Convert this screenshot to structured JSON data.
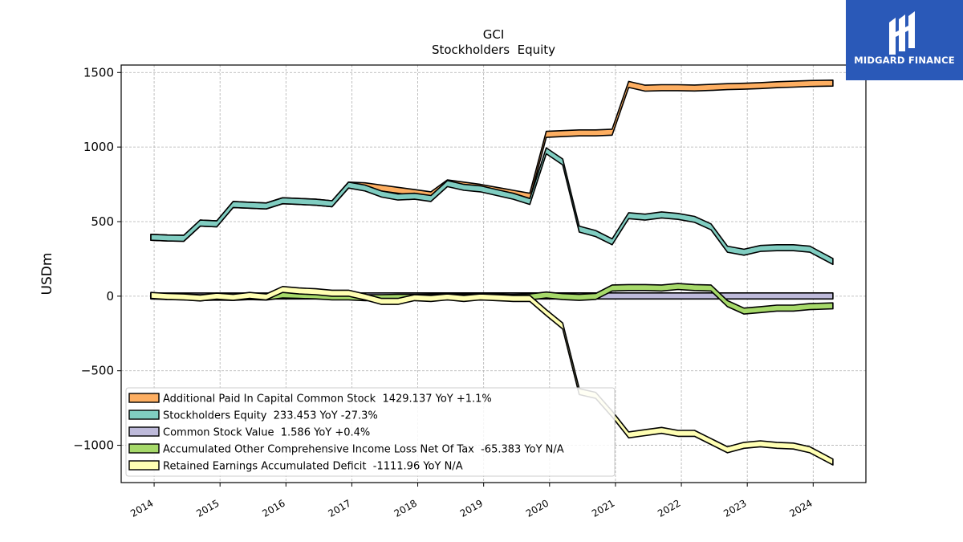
{
  "brand": {
    "name": "MIDGARD FINANCE",
    "bg_color": "#2a59b8"
  },
  "chart_data": {
    "type": "area",
    "title": "GCI",
    "subtitle": "Stockholders  Equity",
    "ylabel": "USDm",
    "xlabel": "",
    "ylim": [
      -1250,
      1550
    ],
    "xlim": [
      2013.5,
      2024.8
    ],
    "yticks": [
      -1000,
      -500,
      0,
      500,
      1000,
      1500
    ],
    "yticklabels": [
      "−1000",
      "−500",
      "0",
      "500",
      "1000",
      "1500"
    ],
    "xticks": [
      2014,
      2015,
      2016,
      2017,
      2018,
      2019,
      2020,
      2021,
      2022,
      2023,
      2024
    ],
    "xticklabels": [
      "2014",
      "2015",
      "2016",
      "2017",
      "2018",
      "2019",
      "2020",
      "2021",
      "2022",
      "2023",
      "2024"
    ],
    "grid": true,
    "legend_position": "lower-left",
    "series": [
      {
        "name": "Additional Paid In Capital Common Stock",
        "legend_label": "Additional Paid In Capital Common Stock  1429.137 YoY +1.1%",
        "color": "#fdae61",
        "points": [
          [
            2013.95,
            395
          ],
          [
            2014.2,
            390
          ],
          [
            2014.45,
            388
          ],
          [
            2014.7,
            490
          ],
          [
            2014.95,
            485
          ],
          [
            2015.2,
            615
          ],
          [
            2015.45,
            610
          ],
          [
            2015.7,
            605
          ],
          [
            2015.95,
            640
          ],
          [
            2016.2,
            635
          ],
          [
            2016.45,
            630
          ],
          [
            2016.7,
            620
          ],
          [
            2016.95,
            745
          ],
          [
            2017.2,
            740
          ],
          [
            2017.45,
            725
          ],
          [
            2017.7,
            710
          ],
          [
            2017.95,
            695
          ],
          [
            2018.2,
            680
          ],
          [
            2018.45,
            760
          ],
          [
            2018.7,
            745
          ],
          [
            2018.95,
            730
          ],
          [
            2019.2,
            710
          ],
          [
            2019.45,
            690
          ],
          [
            2019.7,
            670
          ],
          [
            2019.95,
            1085
          ],
          [
            2020.2,
            1090
          ],
          [
            2020.45,
            1095
          ],
          [
            2020.7,
            1095
          ],
          [
            2020.95,
            1100
          ],
          [
            2021.2,
            1420
          ],
          [
            2021.45,
            1395
          ],
          [
            2021.7,
            1398
          ],
          [
            2021.95,
            1398
          ],
          [
            2022.2,
            1396
          ],
          [
            2022.45,
            1400
          ],
          [
            2022.7,
            1405
          ],
          [
            2022.95,
            1408
          ],
          [
            2023.2,
            1412
          ],
          [
            2023.45,
            1418
          ],
          [
            2023.7,
            1422
          ],
          [
            2023.95,
            1426
          ],
          [
            2024.3,
            1429
          ]
        ]
      },
      {
        "name": "Stockholders Equity",
        "legend_label": "Stockholders Equity  233.453 YoY -27.3%",
        "color": "#80cdc1",
        "points": [
          [
            2013.95,
            395
          ],
          [
            2014.2,
            390
          ],
          [
            2014.45,
            388
          ],
          [
            2014.7,
            490
          ],
          [
            2014.95,
            485
          ],
          [
            2015.2,
            615
          ],
          [
            2015.45,
            610
          ],
          [
            2015.7,
            605
          ],
          [
            2015.95,
            640
          ],
          [
            2016.2,
            635
          ],
          [
            2016.45,
            630
          ],
          [
            2016.7,
            620
          ],
          [
            2016.95,
            745
          ],
          [
            2017.2,
            725
          ],
          [
            2017.45,
            685
          ],
          [
            2017.7,
            665
          ],
          [
            2017.95,
            670
          ],
          [
            2018.2,
            655
          ],
          [
            2018.45,
            755
          ],
          [
            2018.7,
            730
          ],
          [
            2018.95,
            720
          ],
          [
            2019.2,
            695
          ],
          [
            2019.45,
            670
          ],
          [
            2019.7,
            635
          ],
          [
            2019.95,
            975
          ],
          [
            2020.2,
            900
          ],
          [
            2020.45,
            450
          ],
          [
            2020.7,
            420
          ],
          [
            2020.95,
            365
          ],
          [
            2021.2,
            540
          ],
          [
            2021.45,
            530
          ],
          [
            2021.7,
            545
          ],
          [
            2021.95,
            535
          ],
          [
            2022.2,
            515
          ],
          [
            2022.45,
            465
          ],
          [
            2022.7,
            315
          ],
          [
            2022.95,
            295
          ],
          [
            2023.2,
            320
          ],
          [
            2023.45,
            325
          ],
          [
            2023.7,
            325
          ],
          [
            2023.95,
            315
          ],
          [
            2024.3,
            233
          ]
        ]
      },
      {
        "name": "Common Stock Value",
        "legend_label": "Common Stock Value  1.586 YoY +0.4%",
        "color": "#bebada",
        "points": [
          [
            2013.95,
            1.5
          ],
          [
            2024.3,
            1.586
          ]
        ]
      },
      {
        "name": "Accumulated Other Comprehensive Income Loss Net Of Tax",
        "legend_label": "Accumulated Other Comprehensive Income Loss Net Of Tax  -65.383 YoY N/A",
        "color": "#a6d96a",
        "points": [
          [
            2013.95,
            2
          ],
          [
            2014.2,
            -3
          ],
          [
            2014.45,
            -5
          ],
          [
            2014.7,
            -10
          ],
          [
            2014.95,
            -6
          ],
          [
            2015.2,
            -8
          ],
          [
            2015.45,
            -3
          ],
          [
            2015.7,
            -6
          ],
          [
            2015.95,
            8
          ],
          [
            2016.2,
            5
          ],
          [
            2016.45,
            2
          ],
          [
            2016.7,
            -5
          ],
          [
            2016.95,
            -5
          ],
          [
            2017.2,
            -10
          ],
          [
            2017.45,
            -10
          ],
          [
            2017.7,
            -8
          ],
          [
            2017.95,
            -8
          ],
          [
            2018.2,
            -6
          ],
          [
            2018.45,
            -4
          ],
          [
            2018.7,
            -6
          ],
          [
            2018.95,
            -6
          ],
          [
            2019.2,
            -5
          ],
          [
            2019.45,
            -8
          ],
          [
            2019.7,
            -5
          ],
          [
            2019.95,
            8
          ],
          [
            2020.2,
            -3
          ],
          [
            2020.45,
            -8
          ],
          [
            2020.7,
            -2
          ],
          [
            2020.95,
            55
          ],
          [
            2021.2,
            58
          ],
          [
            2021.45,
            58
          ],
          [
            2021.7,
            55
          ],
          [
            2021.95,
            65
          ],
          [
            2022.2,
            58
          ],
          [
            2022.45,
            55
          ],
          [
            2022.7,
            -50
          ],
          [
            2022.95,
            -100
          ],
          [
            2023.2,
            -90
          ],
          [
            2023.45,
            -80
          ],
          [
            2023.7,
            -80
          ],
          [
            2023.95,
            -70
          ],
          [
            2024.3,
            -65
          ]
        ]
      },
      {
        "name": "Retained Earnings Accumulated Deficit",
        "legend_label": "Retained Earnings Accumulated Deficit  -1111.96 YoY N/A",
        "color": "#ffffb3",
        "points": [
          [
            2013.95,
            5
          ],
          [
            2014.2,
            -2
          ],
          [
            2014.45,
            -5
          ],
          [
            2014.7,
            -12
          ],
          [
            2014.95,
            0
          ],
          [
            2015.2,
            -8
          ],
          [
            2015.45,
            5
          ],
          [
            2015.7,
            -5
          ],
          [
            2015.95,
            45
          ],
          [
            2016.2,
            35
          ],
          [
            2016.45,
            30
          ],
          [
            2016.7,
            20
          ],
          [
            2016.95,
            20
          ],
          [
            2017.2,
            -5
          ],
          [
            2017.45,
            -35
          ],
          [
            2017.7,
            -35
          ],
          [
            2017.95,
            -10
          ],
          [
            2018.2,
            -15
          ],
          [
            2018.45,
            -5
          ],
          [
            2018.7,
            -15
          ],
          [
            2018.95,
            -5
          ],
          [
            2019.2,
            -10
          ],
          [
            2019.45,
            -15
          ],
          [
            2019.7,
            -15
          ],
          [
            2019.95,
            -110
          ],
          [
            2020.2,
            -200
          ],
          [
            2020.45,
            -640
          ],
          [
            2020.7,
            -665
          ],
          [
            2020.95,
            -790
          ],
          [
            2021.2,
            -930
          ],
          [
            2021.45,
            -915
          ],
          [
            2021.7,
            -900
          ],
          [
            2021.95,
            -920
          ],
          [
            2022.2,
            -920
          ],
          [
            2022.45,
            -975
          ],
          [
            2022.7,
            -1030
          ],
          [
            2022.95,
            -1000
          ],
          [
            2023.2,
            -990
          ],
          [
            2023.45,
            -1000
          ],
          [
            2023.7,
            -1005
          ],
          [
            2023.95,
            -1030
          ],
          [
            2024.3,
            -1112
          ]
        ]
      }
    ]
  }
}
